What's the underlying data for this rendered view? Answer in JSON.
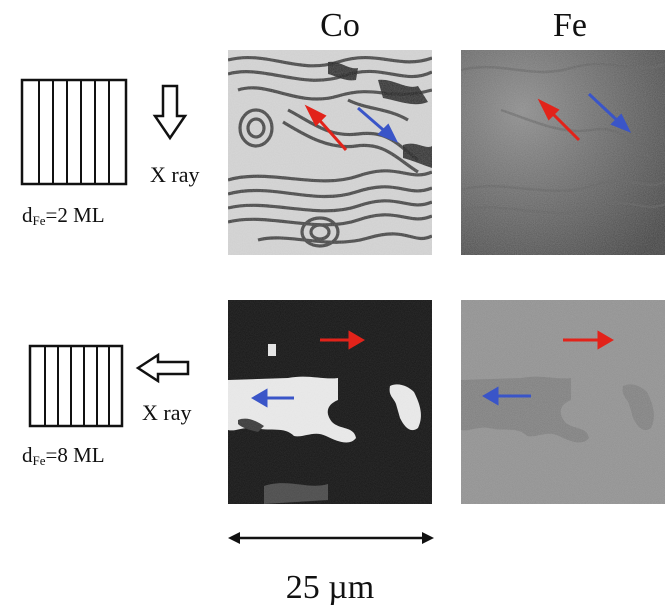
{
  "columns": {
    "co": "Co",
    "fe": "Fe"
  },
  "rows": [
    {
      "d_prefix": "d",
      "d_sub": "Fe",
      "d_value": "=2 ML",
      "xray": "X ray",
      "incidence": "top"
    },
    {
      "d_prefix": "d",
      "d_sub": "Fe",
      "d_value": "=8 ML",
      "xray": "X ray",
      "incidence": "side"
    }
  ],
  "scale_bar": "25 µm",
  "colors": {
    "red_arrow": "#e2231a",
    "blue_arrow": "#3a55c8",
    "ink": "#111111"
  }
}
